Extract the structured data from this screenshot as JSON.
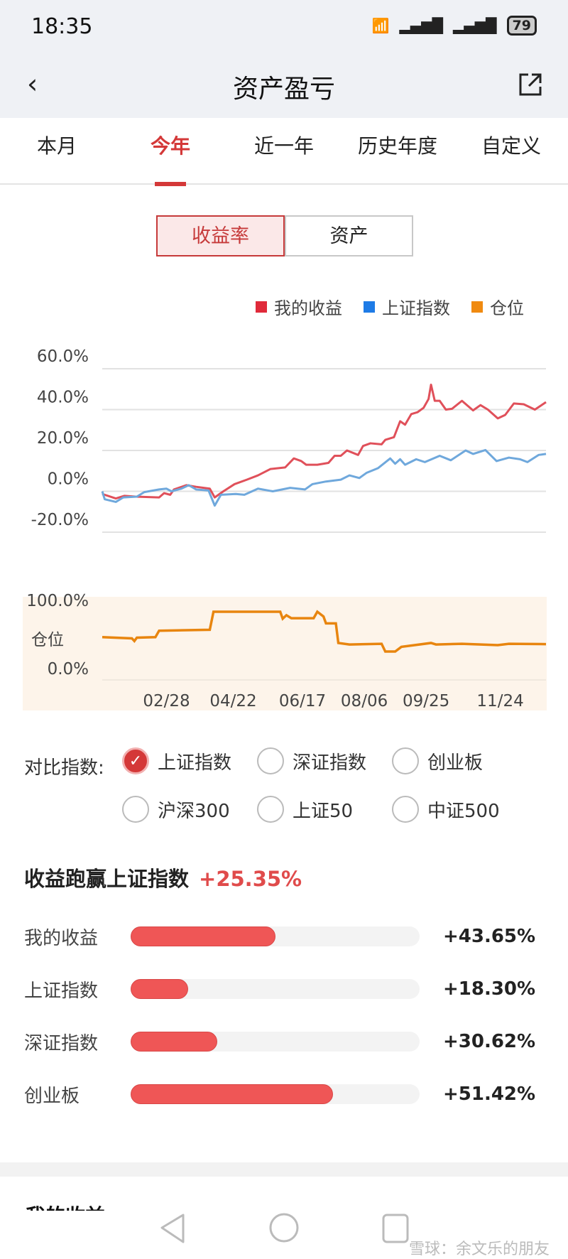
{
  "status": {
    "time": "18:35",
    "battery": "79",
    "icons": [
      "wifi-icon",
      "signal-icon",
      "signal-icon",
      "battery-icon"
    ]
  },
  "header": {
    "title": "资产盈亏",
    "back_icon": "chevron-left-icon",
    "share_icon": "share-icon"
  },
  "tabs": [
    {
      "label": "本月"
    },
    {
      "label": "今年",
      "active": true
    },
    {
      "label": "近一年"
    },
    {
      "label": "历史年度"
    },
    {
      "label": "自定义"
    }
  ],
  "segment": [
    {
      "label": "收益率",
      "active": true
    },
    {
      "label": "资产"
    }
  ],
  "legend": [
    {
      "label": "我的收益",
      "color": "#e02a3a"
    },
    {
      "label": "上证指数",
      "color": "#1e7be6"
    },
    {
      "label": "仓位",
      "color": "#f08a10"
    }
  ],
  "chart_data": [
    {
      "type": "line",
      "ylim": [
        -20,
        60
      ],
      "yticks": [
        "60.0%",
        "40.0%",
        "20.0%",
        "0.0%",
        "-20.0%"
      ],
      "grid": true,
      "series": [
        {
          "name": "我的收益",
          "color": "#e0505a",
          "points": [
            [
              "01/07",
              -1.3
            ],
            [
              "01/18",
              -3.5
            ],
            [
              "01/25",
              -2.2
            ],
            [
              "02/03",
              -2.6
            ],
            [
              "02/22",
              -3
            ],
            [
              "02/26",
              -0.9
            ],
            [
              "03/02",
              -1.7
            ],
            [
              "03/05",
              0.9
            ],
            [
              "03/15",
              3
            ],
            [
              "03/23",
              2.2
            ],
            [
              "04/03",
              1.3
            ],
            [
              "04/07",
              -3
            ],
            [
              "04/14",
              0
            ],
            [
              "04/23",
              3.5
            ],
            [
              "05/03",
              5.7
            ],
            [
              "05/12",
              7.8
            ],
            [
              "05/22",
              10.9
            ],
            [
              "06/03",
              11.7
            ],
            [
              "06/10",
              16.1
            ],
            [
              "06/16",
              14.8
            ],
            [
              "06/20",
              13
            ],
            [
              "06/29",
              13
            ],
            [
              "07/08",
              13.9
            ],
            [
              "07/13",
              17.4
            ],
            [
              "07/18",
              17.4
            ],
            [
              "07/23",
              20
            ],
            [
              "08/01",
              17.8
            ],
            [
              "08/05",
              22.2
            ],
            [
              "08/11",
              23.5
            ],
            [
              "08/20",
              23
            ],
            [
              "08/23",
              25.2
            ],
            [
              "08/30",
              26.5
            ],
            [
              "09/04",
              34.3
            ],
            [
              "09/08",
              32.6
            ],
            [
              "09/13",
              37.8
            ],
            [
              "09/18",
              38.7
            ],
            [
              "09/23",
              40.9
            ],
            [
              "09/27",
              45.2
            ],
            [
              "09/29",
              52.2
            ],
            [
              "10/02",
              44.3
            ],
            [
              "10/06",
              44.3
            ],
            [
              "10/11",
              40
            ],
            [
              "10/16",
              40.4
            ],
            [
              "10/24",
              44.3
            ],
            [
              "11/02",
              39.6
            ],
            [
              "11/08",
              42.2
            ],
            [
              "11/14",
              40
            ],
            [
              "11/22",
              35.7
            ],
            [
              "11/28",
              37.4
            ],
            [
              "12/05",
              43
            ],
            [
              "12/13",
              42.6
            ],
            [
              "12/22",
              40
            ],
            [
              "12/31",
              43.65
            ]
          ]
        },
        {
          "name": "上证指数",
          "color": "#6fa8dc",
          "points": [
            [
              "01/07",
              0
            ],
            [
              "01/09",
              -3.9
            ],
            [
              "01/18",
              -5.2
            ],
            [
              "01/24",
              -3
            ],
            [
              "02/04",
              -2.6
            ],
            [
              "02/10",
              -0.4
            ],
            [
              "02/22",
              0.9
            ],
            [
              "02/28",
              1.3
            ],
            [
              "03/03",
              0
            ],
            [
              "03/11",
              1.3
            ],
            [
              "03/17",
              3
            ],
            [
              "03/23",
              0.9
            ],
            [
              "04/02",
              0.4
            ],
            [
              "04/07",
              -7
            ],
            [
              "04/12",
              -1.7
            ],
            [
              "04/24",
              -1.3
            ],
            [
              "05/01",
              -1.7
            ],
            [
              "05/12",
              1.3
            ],
            [
              "05/24",
              0
            ],
            [
              "06/07",
              1.7
            ],
            [
              "06/19",
              0.9
            ],
            [
              "06/25",
              3.5
            ],
            [
              "07/06",
              4.8
            ],
            [
              "07/18",
              5.7
            ],
            [
              "07/25",
              7.8
            ],
            [
              "08/02",
              6.5
            ],
            [
              "08/08",
              9.1
            ],
            [
              "08/17",
              11.3
            ],
            [
              "08/27",
              16.1
            ],
            [
              "08/31",
              13.5
            ],
            [
              "09/04",
              15.7
            ],
            [
              "09/08",
              13
            ],
            [
              "09/17",
              15.7
            ],
            [
              "09/24",
              14.3
            ],
            [
              "10/06",
              17.4
            ],
            [
              "10/15",
              15.2
            ],
            [
              "10/27",
              20
            ],
            [
              "11/02",
              18.3
            ],
            [
              "11/12",
              20.2
            ],
            [
              "11/21",
              14.8
            ],
            [
              "12/01",
              16.5
            ],
            [
              "12/10",
              15.7
            ],
            [
              "12/16",
              14.3
            ],
            [
              "12/25",
              17.8
            ],
            [
              "12/31",
              18.3
            ]
          ]
        }
      ]
    },
    {
      "type": "line",
      "ylabel": "仓位",
      "ylim": [
        0,
        100
      ],
      "yticks": [
        "100.0%",
        "0.0%"
      ],
      "xticks": [
        "02/28",
        "04/22",
        "06/17",
        "08/06",
        "09/25",
        "11/24"
      ],
      "series": [
        {
          "name": "仓位",
          "color": "#e8850f",
          "points": [
            [
              "01/07",
              62.7
            ],
            [
              "01/31",
              61
            ],
            [
              "02/02",
              57
            ],
            [
              "02/04",
              62
            ],
            [
              "02/19",
              62.7
            ],
            [
              "02/22",
              72.2
            ],
            [
              "04/03",
              73.6
            ],
            [
              "04/06",
              100
            ],
            [
              "05/30",
              100
            ],
            [
              "06/01",
              89.8
            ],
            [
              "06/04",
              94.9
            ],
            [
              "06/08",
              90.5
            ],
            [
              "06/26",
              90.5
            ],
            [
              "06/29",
              100
            ],
            [
              "07/04",
              93
            ],
            [
              "07/06",
              83
            ],
            [
              "07/14",
              83
            ],
            [
              "07/16",
              54.2
            ],
            [
              "07/25",
              52
            ],
            [
              "08/20",
              53
            ],
            [
              "08/23",
              41.7
            ],
            [
              "08/31",
              41.7
            ],
            [
              "09/05",
              48.5
            ],
            [
              "09/29",
              54.2
            ],
            [
              "10/03",
              52
            ],
            [
              "10/24",
              53
            ],
            [
              "11/22",
              51
            ],
            [
              "12/01",
              53
            ],
            [
              "12/31",
              52.5
            ]
          ]
        }
      ]
    }
  ],
  "compare": {
    "label": "对比指数:",
    "options": [
      {
        "label": "上证指数",
        "checked": true
      },
      {
        "label": "深证指数"
      },
      {
        "label": "创业板"
      },
      {
        "label": "沪深300"
      },
      {
        "label": "上证50"
      },
      {
        "label": "中证500"
      }
    ]
  },
  "beat": {
    "title": "收益跑赢上证指数",
    "value": "+25.35%"
  },
  "bars": [
    {
      "label": "我的收益",
      "value": "+43.65%",
      "fill": 0.5
    },
    {
      "label": "上证指数",
      "value": "+18.30%",
      "fill": 0.2
    },
    {
      "label": "深证指数",
      "value": "+30.62%",
      "fill": 0.3
    },
    {
      "label": "创业板",
      "value": "+51.42%",
      "fill": 0.7
    }
  ],
  "next_section": "我的收益",
  "watermark": "雪球：余文乐的朋友"
}
